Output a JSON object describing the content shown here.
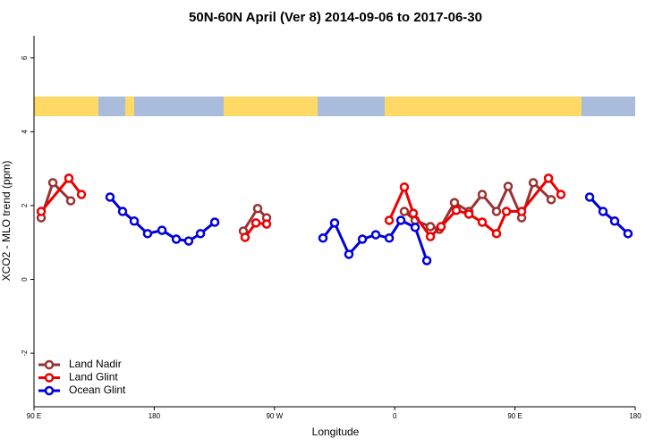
{
  "chart_data": {
    "type": "line",
    "title": "50N-60N April (Ver 8)   2014-09-06 to 2017-06-30",
    "x_label": "Longitude",
    "y_label": "XCO2 - MLO trend (ppm)",
    "xlim": [
      90,
      540
    ],
    "ylim": [
      -3.45,
      6.6
    ],
    "xticks": [
      {
        "value": 90,
        "label": "90 E"
      },
      {
        "value": 180,
        "label": "180"
      },
      {
        "value": 270,
        "label": "90 W"
      },
      {
        "value": 360,
        "label": "0"
      },
      {
        "value": 450,
        "label": "90 E"
      },
      {
        "value": 540,
        "label": "180"
      }
    ],
    "yticks": [
      -2,
      0,
      2,
      4,
      6
    ],
    "legend": "bottom-left",
    "series": [
      {
        "name": "Land Nadir",
        "color": "#993333",
        "x": [
          95.4,
          104.1,
          117.5,
          null,
          246.7,
          257.4,
          264.1,
          null,
          367.2,
          375.3,
          386.7,
          393.4,
          404.7,
          415.5,
          425.5,
          436.2,
          444.9,
          455.0,
          463.7,
          477.1
        ],
        "values": [
          1.67,
          2.62,
          2.13,
          null,
          1.31,
          1.92,
          1.67,
          null,
          1.84,
          1.6,
          1.43,
          1.36,
          2.08,
          1.84,
          2.3,
          1.84,
          2.52,
          1.67,
          2.62,
          2.16
        ]
      },
      {
        "name": "Land Glint",
        "color": "#ee0000",
        "x": [
          95.4,
          116.1,
          125.5,
          null,
          248.0,
          256.1,
          264.1,
          null,
          355.9,
          367.2,
          373.9,
          386.7,
          394.7,
          406.1,
          415.5,
          425.5,
          436.2,
          443.6,
          455.0,
          475.1,
          484.4
        ],
        "values": [
          1.84,
          2.74,
          2.3,
          null,
          1.14,
          1.53,
          1.5,
          null,
          1.6,
          2.5,
          1.79,
          1.16,
          1.43,
          1.87,
          1.77,
          1.55,
          1.24,
          1.84,
          1.84,
          2.74,
          2.3
        ]
      },
      {
        "name": "Ocean Glint",
        "color": "#0000dd",
        "x": [
          146.9,
          156.3,
          165.0,
          175.0,
          185.8,
          196.5,
          205.8,
          214.6,
          225.3,
          null,
          306.3,
          315.0,
          325.7,
          335.8,
          345.8,
          355.9,
          364.6,
          375.3,
          384.0,
          null,
          505.9,
          515.9,
          524.6,
          534.6
        ],
        "values": [
          2.23,
          1.84,
          1.58,
          1.24,
          1.33,
          1.09,
          1.04,
          1.24,
          1.55,
          null,
          1.12,
          1.53,
          0.68,
          1.09,
          1.21,
          1.12,
          1.6,
          1.41,
          0.51,
          null,
          2.23,
          1.84,
          1.58,
          1.24
        ]
      }
    ]
  }
}
